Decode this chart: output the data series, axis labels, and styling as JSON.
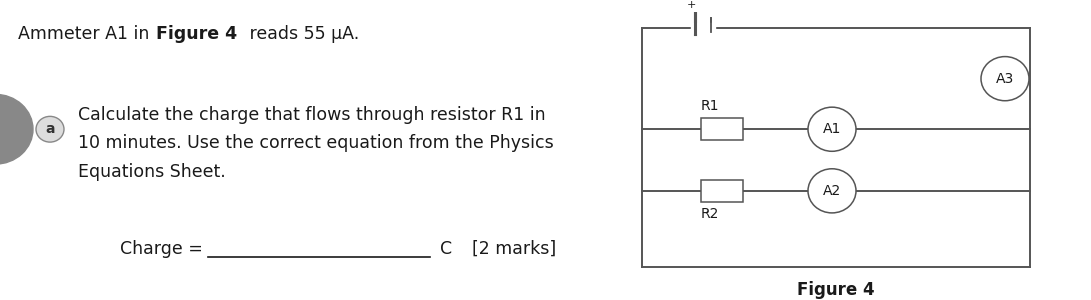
{
  "title_normal1": "Ammeter A1 in ",
  "title_bold": "Figure 4",
  "title_normal2": " reads 55 μA.",
  "q_line1": "Calculate the charge that flows through resistor R1 in",
  "q_line2": "10 minutes. Use the correct equation from the Physics",
  "q_line3": "Equations Sheet.",
  "charge_label": "Charge =",
  "charge_unit": "C",
  "charge_marks": "[2 marks]",
  "figure_caption": "Figure 4",
  "label_a": "a",
  "r1_label": "R1",
  "r2_label": "R2",
  "a1_label": "A1",
  "a2_label": "A2",
  "a3_label": "A3",
  "bg_color": "#ffffff",
  "text_color": "#1a1a1a",
  "circuit_color": "#555555",
  "circle_a_color": "#aaaaaa",
  "circle_a_text": "#333333",
  "font_size": 12.5,
  "circuit_lw": 1.4
}
